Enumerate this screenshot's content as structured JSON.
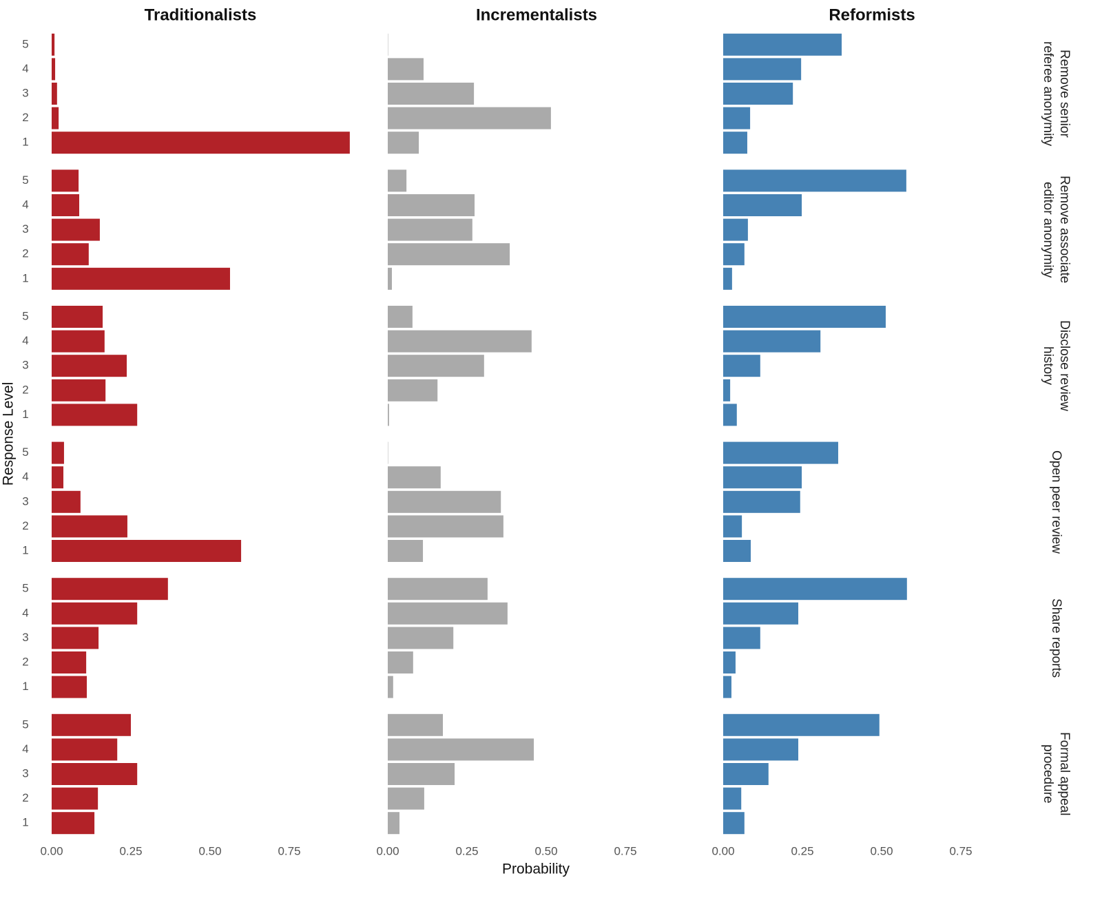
{
  "chart_data": {
    "type": "bar",
    "orientation": "horizontal",
    "x_label": "Probability",
    "y_label": "Response Level",
    "categories": [
      "1",
      "2",
      "3",
      "4",
      "5"
    ],
    "row_labels": [
      "Remove senior referee anonymity",
      "Remove associate editor anonymity",
      "Disclose review history",
      "Open peer review",
      "Share reports",
      "Formal appeal procedure"
    ],
    "xlim": [
      0,
      0.95
    ],
    "xticks": [
      {
        "value": 0,
        "label": "0.00"
      },
      {
        "value": 0.25,
        "label": "0.25"
      },
      {
        "value": 0.5,
        "label": "0.50"
      },
      {
        "value": 0.75,
        "label": "0.75"
      }
    ],
    "series": [
      {
        "name": "Traditionalists",
        "color": "#b22228",
        "values": [
          [
            0.941,
            0.022,
            0.017,
            0.011,
            0.009
          ],
          [
            0.563,
            0.117,
            0.152,
            0.087,
            0.085
          ],
          [
            0.27,
            0.17,
            0.237,
            0.167,
            0.161
          ],
          [
            0.598,
            0.239,
            0.091,
            0.037,
            0.039
          ],
          [
            0.111,
            0.109,
            0.148,
            0.27,
            0.367
          ],
          [
            0.135,
            0.146,
            0.27,
            0.207,
            0.25
          ]
        ]
      },
      {
        "name": "Incrementalists",
        "color": "#aaaaaa",
        "values": [
          [
            0.098,
            0.515,
            0.272,
            0.113,
            0.001
          ],
          [
            0.013,
            0.385,
            0.267,
            0.274,
            0.059
          ],
          [
            0.004,
            0.157,
            0.304,
            0.454,
            0.078
          ],
          [
            0.111,
            0.365,
            0.357,
            0.167,
            0.001
          ],
          [
            0.017,
            0.08,
            0.207,
            0.378,
            0.315
          ],
          [
            0.037,
            0.115,
            0.211,
            0.461,
            0.174
          ]
        ]
      },
      {
        "name": "Reformists",
        "color": "#4682b4",
        "values": [
          [
            0.076,
            0.085,
            0.22,
            0.246,
            0.374
          ],
          [
            0.028,
            0.067,
            0.078,
            0.248,
            0.578
          ],
          [
            0.043,
            0.022,
            0.117,
            0.307,
            0.513
          ],
          [
            0.087,
            0.059,
            0.243,
            0.248,
            0.363
          ],
          [
            0.026,
            0.039,
            0.117,
            0.237,
            0.58
          ],
          [
            0.067,
            0.057,
            0.143,
            0.237,
            0.493
          ]
        ]
      }
    ]
  }
}
